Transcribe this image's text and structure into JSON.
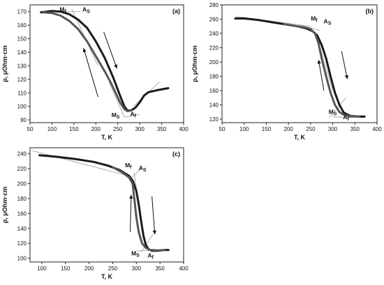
{
  "chart_data": [
    {
      "type": "line",
      "panel_label": "(a)",
      "xlabel": "T, K",
      "ylabel": "ρ, μOhm·cm",
      "xlim": [
        50,
        400
      ],
      "ylim": [
        88,
        175
      ],
      "xticks": [
        50,
        100,
        150,
        200,
        250,
        300,
        350,
        400
      ],
      "yticks": [
        90,
        100,
        110,
        120,
        130,
        140,
        150,
        160,
        170
      ],
      "series": [
        {
          "direction": "heating",
          "x": [
            75,
            100,
            120,
            140,
            160,
            180,
            200,
            220,
            240,
            255,
            265,
            272,
            280,
            290,
            300,
            310,
            320,
            340,
            365
          ],
          "y": [
            169.5,
            170.5,
            170,
            168,
            164,
            158,
            148,
            136,
            121,
            108,
            100,
            97,
            97,
            99,
            103,
            108,
            110.5,
            112,
            113.5
          ]
        },
        {
          "direction": "cooling",
          "x": [
            280,
            272,
            265,
            255,
            245,
            235,
            220,
            200,
            180,
            160,
            140,
            120,
            100,
            80
          ],
          "y": [
            97,
            96.5,
            98,
            103,
            110,
            117,
            126,
            137,
            148,
            157,
            163,
            167,
            169,
            169.5
          ]
        }
      ],
      "annotations": [
        {
          "label": "M",
          "sub": "f",
          "x": 125,
          "y": 170
        },
        {
          "label": "A",
          "sub": "S",
          "x": 178,
          "y": 170
        },
        {
          "label": "M",
          "sub": "S",
          "x": 245,
          "y": 92
        },
        {
          "label": "A",
          "sub": "f",
          "x": 285,
          "y": 93
        }
      ],
      "arrows": [
        {
          "from": [
            218,
            155
          ],
          "to": [
            248,
            128
          ]
        },
        {
          "from": [
            205,
            107
          ],
          "to": [
            172,
            143
          ]
        }
      ]
    },
    {
      "type": "line",
      "panel_label": "(b)",
      "xlabel": "T, K",
      "ylabel": "ρ, μOhm·cm",
      "xlim": [
        50,
        400
      ],
      "ylim": [
        115,
        280
      ],
      "xticks": [
        50,
        100,
        150,
        200,
        250,
        300,
        350,
        400
      ],
      "yticks": [
        120,
        140,
        160,
        180,
        200,
        220,
        240,
        260,
        280
      ],
      "series": [
        {
          "direction": "heating",
          "x": [
            80,
            100,
            130,
            160,
            190,
            220,
            240,
            255,
            265,
            275,
            285,
            295,
            305,
            315,
            325,
            340,
            360,
            372
          ],
          "y": [
            261,
            261,
            259,
            256,
            253,
            250,
            247,
            243,
            237,
            224,
            205,
            180,
            157,
            140,
            129,
            124.5,
            123.5,
            123.5
          ]
        },
        {
          "direction": "cooling",
          "x": [
            360,
            340,
            325,
            315,
            305,
            295,
            285,
            275,
            268,
            260,
            250,
            240,
            220,
            190
          ],
          "y": [
            123.5,
            124,
            126,
            130,
            140,
            157,
            180,
            205,
            226,
            240,
            246,
            248,
            250,
            253
          ]
        }
      ],
      "annotations": [
        {
          "label": "M",
          "sub": "f",
          "x": 258,
          "y": 258
        },
        {
          "label": "A",
          "sub": "S",
          "x": 288,
          "y": 254
        },
        {
          "label": "M",
          "sub": "S",
          "x": 300,
          "y": 127
        },
        {
          "label": "A",
          "sub": "f",
          "x": 330,
          "y": 120
        }
      ],
      "arrows": [
        {
          "from": [
            320,
            215
          ],
          "to": [
            333,
            176
          ]
        },
        {
          "from": [
            280,
            160
          ],
          "to": [
            268,
            203
          ]
        }
      ]
    },
    {
      "type": "line",
      "panel_label": "(c)",
      "xlabel": "T, K",
      "ylabel": "ρ, μOhm·cm",
      "xlim": [
        75,
        400
      ],
      "ylim": [
        95,
        248
      ],
      "xticks": [
        100,
        150,
        200,
        250,
        300,
        350,
        400
      ],
      "yticks": [
        100,
        120,
        140,
        160,
        180,
        200,
        220,
        240
      ],
      "series": [
        {
          "direction": "heating",
          "x": [
            95,
            130,
            170,
            210,
            240,
            265,
            285,
            293,
            300,
            305,
            310,
            315,
            320,
            326,
            333,
            345,
            360,
            368
          ],
          "y": [
            238,
            236,
            233,
            229,
            224,
            218,
            210,
            203,
            190,
            172,
            150,
            130,
            118,
            112,
            110,
            110,
            111,
            111
          ]
        },
        {
          "direction": "cooling",
          "x": [
            360,
            345,
            330,
            320,
            312,
            305,
            300,
            296,
            292,
            285,
            270,
            250
          ],
          "y": [
            111,
            110.5,
            111,
            114,
            120,
            135,
            155,
            178,
            200,
            208,
            215,
            222
          ]
        }
      ],
      "annotations": [
        {
          "label": "M",
          "sub": "f",
          "x": 283,
          "y": 222
        },
        {
          "label": "A",
          "sub": "S",
          "x": 313,
          "y": 218
        },
        {
          "label": "M",
          "sub": "S",
          "x": 298,
          "y": 104
        },
        {
          "label": "A",
          "sub": "f",
          "x": 330,
          "y": 101
        }
      ],
      "arrows": [
        {
          "from": [
            333,
            183
          ],
          "to": [
            339,
            132
          ]
        },
        {
          "from": [
            287,
            135
          ],
          "to": [
            289,
            185
          ]
        }
      ]
    }
  ]
}
